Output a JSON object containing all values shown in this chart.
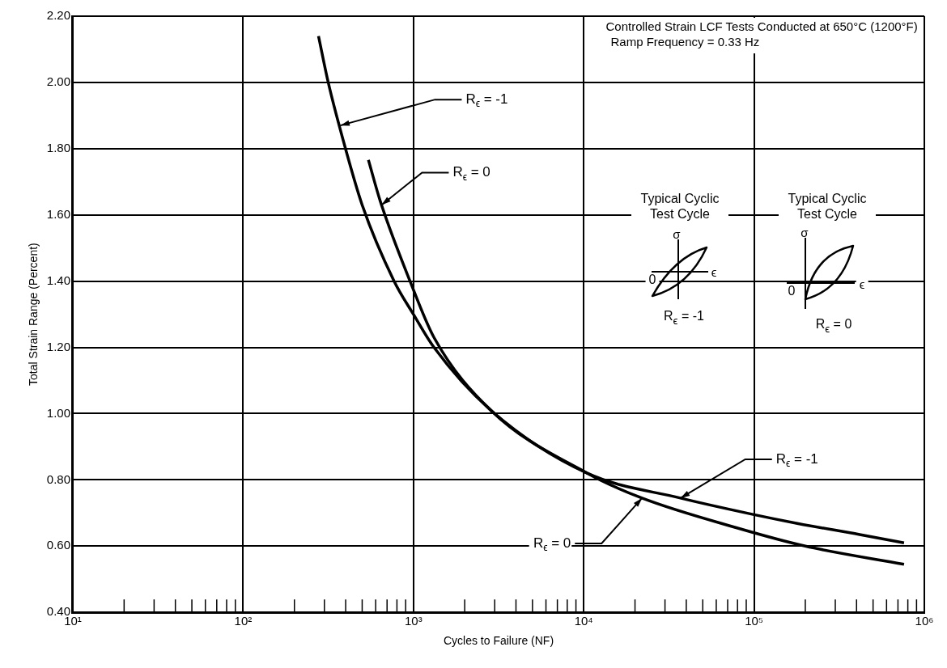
{
  "chart_data": {
    "type": "line",
    "xlabel": "Cycles to Failure (NF)",
    "ylabel": "Total Strain Range (Percent)",
    "log": "x",
    "xlim": [
      10,
      1000000
    ],
    "ylim": [
      0.4,
      2.2
    ],
    "xticks": [
      {
        "value": 10,
        "label": "10¹"
      },
      {
        "value": 20,
        "label": null
      },
      {
        "value": 30,
        "label": null
      },
      {
        "value": 40,
        "label": null
      },
      {
        "value": 50,
        "label": null
      },
      {
        "value": 60,
        "label": null
      },
      {
        "value": 70,
        "label": null
      },
      {
        "value": 80,
        "label": null
      },
      {
        "value": 90,
        "label": null
      },
      {
        "value": 100,
        "label": "10²"
      },
      {
        "value": 200,
        "label": null
      },
      {
        "value": 300,
        "label": null
      },
      {
        "value": 400,
        "label": null
      },
      {
        "value": 500,
        "label": null
      },
      {
        "value": 600,
        "label": null
      },
      {
        "value": 700,
        "label": null
      },
      {
        "value": 800,
        "label": null
      },
      {
        "value": 900,
        "label": null
      },
      {
        "value": 1000,
        "label": "10³"
      },
      {
        "value": 2000,
        "label": null
      },
      {
        "value": 3000,
        "label": null
      },
      {
        "value": 4000,
        "label": null
      },
      {
        "value": 5000,
        "label": null
      },
      {
        "value": 6000,
        "label": null
      },
      {
        "value": 7000,
        "label": null
      },
      {
        "value": 8000,
        "label": null
      },
      {
        "value": 9000,
        "label": null
      },
      {
        "value": 10000,
        "label": "10⁴"
      },
      {
        "value": 20000,
        "label": null
      },
      {
        "value": 30000,
        "label": null
      },
      {
        "value": 40000,
        "label": null
      },
      {
        "value": 50000,
        "label": null
      },
      {
        "value": 60000,
        "label": null
      },
      {
        "value": 70000,
        "label": null
      },
      {
        "value": 80000,
        "label": null
      },
      {
        "value": 90000,
        "label": null
      },
      {
        "value": 100000,
        "label": "10⁵"
      },
      {
        "value": 200000,
        "label": null
      },
      {
        "value": 300000,
        "label": null
      },
      {
        "value": 400000,
        "label": null
      },
      {
        "value": 500000,
        "label": null
      },
      {
        "value": 600000,
        "label": null
      },
      {
        "value": 700000,
        "label": null
      },
      {
        "value": 800000,
        "label": null
      },
      {
        "value": 900000,
        "label": null
      },
      {
        "value": 1000000,
        "label": "10⁶"
      }
    ],
    "yticks": [
      {
        "value": 0.4,
        "label": "0.40"
      },
      {
        "value": 0.6,
        "label": "0.60"
      },
      {
        "value": 0.8,
        "label": "0.80"
      },
      {
        "value": 1.0,
        "label": "1.00"
      },
      {
        "value": 1.2,
        "label": "1.20"
      },
      {
        "value": 1.4,
        "label": "1.40"
      },
      {
        "value": 1.6,
        "label": "1.60"
      },
      {
        "value": 1.8,
        "label": "1.80"
      },
      {
        "value": 2.0,
        "label": "2.00"
      },
      {
        "value": 2.2,
        "label": "2.20"
      }
    ],
    "grid": true,
    "legend": false,
    "marker": "none",
    "line_style": "solid",
    "series": [
      {
        "color": "#000000",
        "x": [
          277,
          316,
          380,
          500,
          770,
          1000,
          1320,
          2850,
          10500,
          37000,
          100000,
          182000,
          417000,
          760000
        ],
        "values": [
          2.14,
          2.0,
          1.84,
          1.63,
          1.4,
          1.3,
          1.2,
          1.01,
          0.82,
          0.745,
          0.695,
          0.668,
          0.635,
          0.61
        ]
      },
      {
        "color": "#000000",
        "x": [
          544,
          640,
          955,
          1320,
          2850,
          10500,
          22000,
          79400,
          200000,
          760000
        ],
        "values": [
          1.766,
          1.64,
          1.4,
          1.23,
          1.01,
          0.82,
          0.745,
          0.655,
          0.6,
          0.545
        ]
      }
    ],
    "annotations": [
      "Controlled Strain LCF Tests Conducted at 650°C (1200°F)",
      "Ramp Frequency = 0.33 Hz",
      "Typical Cyclic Test Cycle",
      "σ",
      "ϵ",
      "0",
      "R$_{ϵ}$ = -1",
      "Typical Cyclic Test Cycle",
      "σ",
      "ϵ",
      "0",
      "R$_{ϵ}$ = 0",
      {
        "text": "R$_{ϵ}$ = -1",
        "x": 372,
        "y": 1.87
      },
      {
        "text": "R$_{ϵ}$ = 0",
        "x": 650,
        "y": 1.63
      },
      {
        "text": "R$_{ϵ}$ = -1",
        "x": 37000,
        "y": 0.745
      },
      {
        "text": "R$_{ϵ}$ = 0",
        "x": 22000,
        "y": 0.745
      }
    ]
  }
}
